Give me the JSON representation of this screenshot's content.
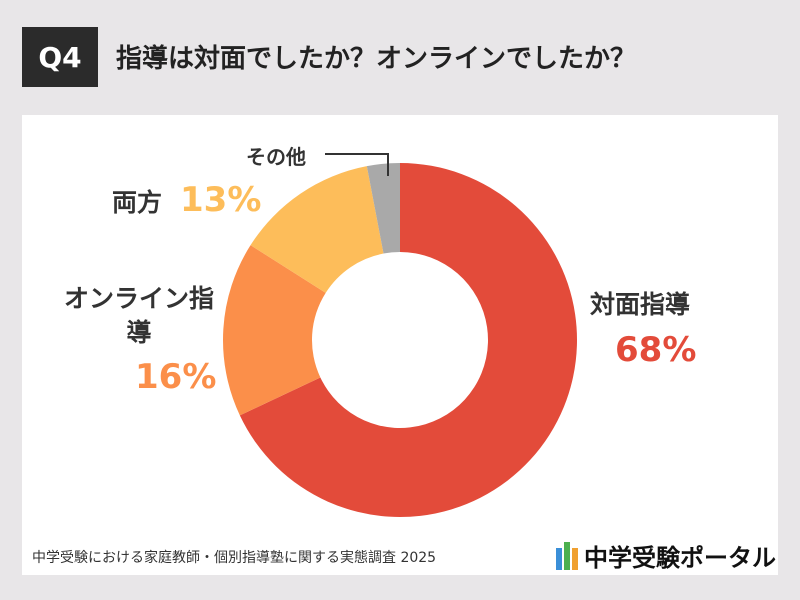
{
  "chart_data": {
    "type": "donut",
    "badge": "Q4",
    "title": "指導は対面でしたか？オンラインでしたか？",
    "categories": [
      "対面指導",
      "オンライン指導",
      "両方",
      "その他"
    ],
    "values": [
      68,
      16,
      13,
      3
    ],
    "value_labels": [
      "68%",
      "16%",
      "13%",
      null
    ],
    "colors": [
      "#e34b3a",
      "#fb8f4a",
      "#fdbd5a",
      "#a9a9a9"
    ],
    "source": "中学受験における家庭教師・個別指導塾に関する実態調査 2025",
    "logo": "中学受験ポータル"
  }
}
